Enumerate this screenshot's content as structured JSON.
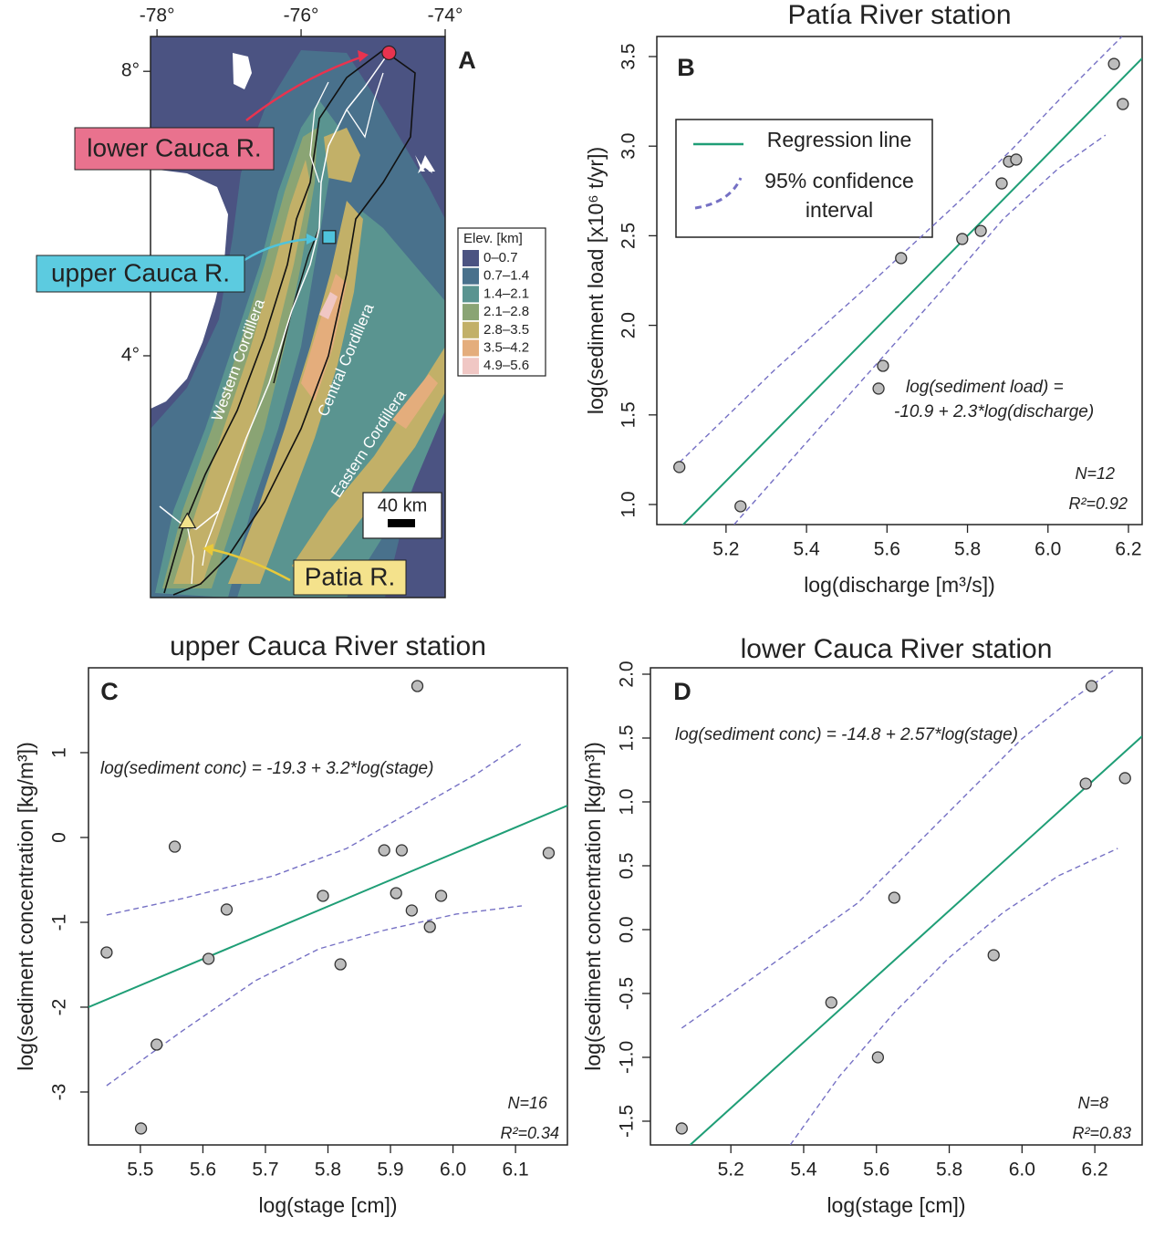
{
  "chart_data": [
    {
      "type": "map",
      "panel_label": "A",
      "xlim": [
        -78.09,
        -74.0
      ],
      "ylim": [
        0.6,
        8.49
      ],
      "xticks": [
        {
          "value": -78,
          "label": "-78°"
        },
        {
          "value": -76,
          "label": "-76°"
        },
        {
          "value": -74,
          "label": "-74°"
        }
      ],
      "yticks": [
        {
          "value": 8,
          "label": "8°"
        },
        {
          "value": 4,
          "label": "4°"
        }
      ],
      "stations": [
        {
          "name": "lower Cauca R.",
          "lon": -74.78,
          "lat": 8.26,
          "marker": "circle",
          "color": "#e8334f",
          "box_color": "#e9728e"
        },
        {
          "name": "upper Cauca R.",
          "lon": -75.61,
          "lat": 5.67,
          "marker": "square",
          "color": "#4fc3dc",
          "box_color": "#5ccbe0"
        },
        {
          "name": "Patia R.",
          "lon": -77.58,
          "lat": 1.67,
          "marker": "triangle",
          "color": "#f3e38b",
          "box_color": "#f4e28c"
        }
      ],
      "legend_title": "Elev. [km]",
      "legend": [
        {
          "label": "0–0.7",
          "color": "#4b5382"
        },
        {
          "label": "0.7–1.4",
          "color": "#49718c"
        },
        {
          "label": "1.4–2.1",
          "color": "#5a9490"
        },
        {
          "label": "2.1–2.8",
          "color": "#8aa474"
        },
        {
          "label": "2.8–3.5",
          "color": "#c2b068"
        },
        {
          "label": "3.5–4.2",
          "color": "#e4ad7c"
        },
        {
          "label": "4.9–5.6",
          "color": "#f0c7c4"
        }
      ],
      "region_labels": [
        "Western Cordillera",
        "Central Cordillera",
        "Eastern Cordillera"
      ],
      "scale_label": "40 km"
    },
    {
      "type": "scatter",
      "title": "Patía River station",
      "panel_label": "B",
      "xlabel": "log(discharge [m³/s])",
      "ylabel": "log(sediment load [x10⁶ t/yr])",
      "xlim": [
        5.028,
        6.234
      ],
      "ylim": [
        0.888,
        3.612
      ],
      "xticks": [
        5.2,
        5.4,
        5.6,
        5.8,
        {
          "value": 6,
          "label": "6.0"
        },
        6.2
      ],
      "yticks": [
        {
          "value": 1,
          "label": "1.0"
        },
        1.5,
        {
          "value": 2,
          "label": "2.0"
        },
        2.5,
        {
          "value": 3,
          "label": "3.0"
        },
        3.5
      ],
      "x": [
        5.084,
        5.236,
        5.579,
        5.59,
        5.635,
        5.787,
        5.833,
        5.885,
        5.903,
        5.921,
        6.164,
        6.186
      ],
      "values": [
        1.209,
        0.99,
        1.647,
        1.774,
        2.375,
        2.482,
        2.527,
        2.792,
        2.914,
        2.925,
        3.459,
        3.235
      ],
      "point_color": "#bdbdbd",
      "regression": {
        "x": [
          5.09,
          6.234
        ],
        "values": [
          0.88,
          3.49
        ],
        "color": "#1f9e76"
      },
      "ci_upper": {
        "x": [
          5.084,
          5.322,
          5.549,
          5.776,
          5.912,
          6.048,
          6.184
        ],
        "values": [
          1.234,
          1.754,
          2.212,
          2.685,
          2.986,
          3.306,
          3.612
        ]
      },
      "ci_lower": {
        "x": [
          5.22,
          5.39,
          5.572,
          5.753,
          5.889,
          6.025,
          6.143
        ],
        "values": [
          0.888,
          1.321,
          1.779,
          2.237,
          2.594,
          2.874,
          3.062
        ]
      },
      "ci_color": "#7570c4",
      "legend": [
        "Regression line",
        "95% confidence interval"
      ],
      "equation": [
        "log(sediment load) =",
        "-10.9 + 2.3*log(discharge)"
      ],
      "n_label": "N=12",
      "r2_label": "R²=0.92"
    },
    {
      "type": "scatter",
      "title": "upper Cauca River station",
      "panel_label": "C",
      "xlabel": "log(stage [cm])",
      "ylabel": "log(sediment concentration [kg/m³])",
      "xlim": [
        5.417,
        6.183
      ],
      "ylim": [
        -3.624,
        2.0
      ],
      "xticks": [
        5.5,
        5.6,
        5.7,
        5.8,
        5.9,
        {
          "value": 6,
          "label": "6.0"
        },
        6.1
      ],
      "yticks": [
        -3,
        -2,
        -1,
        0,
        1
      ],
      "x": [
        5.446,
        5.501,
        5.526,
        5.555,
        5.609,
        5.638,
        5.792,
        5.82,
        5.89,
        5.909,
        5.918,
        5.934,
        5.943,
        5.963,
        5.981,
        6.153
      ],
      "values": [
        -1.355,
        -3.43,
        -2.441,
        -0.108,
        -1.43,
        -0.849,
        -0.688,
        -1.495,
        -0.151,
        -0.656,
        -0.151,
        -0.86,
        1.785,
        -1.054,
        -0.688,
        -0.183
      ],
      "point_color": "#bdbdbd",
      "regression": {
        "x": [
          5.417,
          6.183
        ],
        "values": [
          -2.0,
          0.376
        ],
        "color": "#1f9e76"
      },
      "ci_upper": {
        "x": [
          5.446,
          5.567,
          5.713,
          5.83,
          5.932,
          6.034,
          6.11
        ],
        "values": [
          -0.914,
          -0.72,
          -0.452,
          -0.129,
          0.301,
          0.731,
          1.108
        ]
      },
      "ci_lower": {
        "x": [
          5.446,
          5.567,
          5.684,
          5.786,
          5.888,
          6.005,
          6.11
        ],
        "values": [
          -2.925,
          -2.28,
          -1.688,
          -1.312,
          -1.097,
          -0.903,
          -0.806
        ]
      },
      "ci_color": "#7570c4",
      "equation": [
        "log(sediment conc) = -19.3 + 3.2*log(stage)"
      ],
      "n_label": "N=16",
      "r2_label": "R²=0.34"
    },
    {
      "type": "scatter",
      "title": "lower Cauca River station",
      "panel_label": "D",
      "xlabel": "log(stage [cm])",
      "ylabel": "log(sediment concentration [kg/m³])",
      "xlim": [
        4.979,
        6.33
      ],
      "ylim": [
        -1.686,
        2.05
      ],
      "xticks": [
        5.2,
        5.4,
        5.6,
        5.8,
        {
          "value": 6,
          "label": "6.0"
        },
        6.2
      ],
      "yticks": [
        -1.5,
        {
          "value": -1,
          "label": "-1.0"
        },
        -0.5,
        {
          "value": 0,
          "label": "0.0"
        },
        0.5,
        {
          "value": 1,
          "label": "1.0"
        },
        1.5,
        {
          "value": 2,
          "label": "2.0"
        }
      ],
      "x": [
        5.065,
        5.476,
        5.604,
        5.649,
        5.922,
        6.175,
        6.191,
        6.283
      ],
      "values": [
        -1.557,
        -0.571,
        -1.0,
        0.25,
        -0.2,
        1.143,
        1.907,
        1.186
      ],
      "point_color": "#bdbdbd",
      "regression": {
        "x": [
          5.088,
          6.33
        ],
        "values": [
          -1.686,
          1.514
        ],
        "color": "#1f9e76"
      },
      "ci_upper": {
        "x": [
          5.065,
          5.197,
          5.373,
          5.548,
          5.699,
          5.849,
          5.999,
          6.125,
          6.25
        ],
        "values": [
          -0.771,
          -0.507,
          -0.15,
          0.207,
          0.636,
          1.064,
          1.493,
          1.779,
          2.029
        ]
      },
      "ci_lower": {
        "x": [
          5.363,
          5.498,
          5.649,
          5.799,
          5.949,
          6.1,
          6.263
        ],
        "values": [
          -1.686,
          -1.15,
          -0.65,
          -0.221,
          0.136,
          0.421,
          0.636
        ]
      },
      "ci_color": "#7570c4",
      "equation": [
        "log(sediment conc) = -14.8 + 2.57*log(stage)"
      ],
      "n_label": "N=8",
      "r2_label": "R²=0.83"
    }
  ]
}
